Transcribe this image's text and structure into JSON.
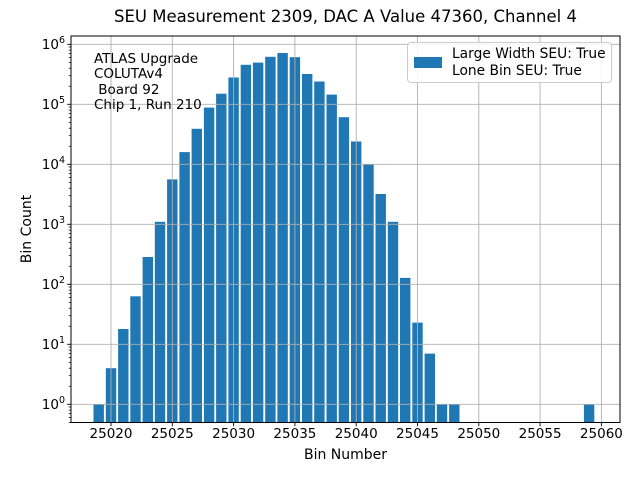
{
  "chart_data": {
    "type": "bar",
    "title": "SEU Measurement 2309, DAC A Value 47360, Channel 4",
    "xlabel": "Bin Number",
    "ylabel": "Bin Count",
    "yscale": "log",
    "grid": true,
    "ylim": [
      0.51,
      1320000
    ],
    "xlim": [
      25017.5,
      25061.5
    ],
    "x_ticks": [
      25020,
      25025,
      25030,
      25035,
      25040,
      25045,
      25050,
      25055,
      25060
    ],
    "y_tick_exponents": [
      0,
      1,
      2,
      3,
      4,
      5,
      6
    ],
    "bar_color": "#1f77b4",
    "grid_color": "#b0b0b0",
    "annotation_lines": [
      "ATLAS Upgrade",
      "COLUTAv4",
      " Board 92",
      "Chip 1, Run 210"
    ],
    "legend": {
      "position": "upper right",
      "labels": [
        "Large Width SEU: True",
        "Lone Bin SEU: True"
      ]
    },
    "bins": [
      25019,
      25020,
      25021,
      25022,
      25023,
      25024,
      25025,
      25026,
      25027,
      25028,
      25029,
      25030,
      25031,
      25032,
      25033,
      25034,
      25035,
      25036,
      25037,
      25038,
      25039,
      25040,
      25041,
      25042,
      25043,
      25044,
      25045,
      25046,
      25047,
      25048,
      25059
    ],
    "counts": [
      1,
      4,
      18,
      63,
      285,
      1100,
      5600,
      16000,
      39000,
      88000,
      150000,
      280000,
      455000,
      495000,
      620000,
      715000,
      610000,
      320000,
      240000,
      145000,
      61000,
      24000,
      10000,
      3200,
      1100,
      128,
      23,
      7,
      1,
      1,
      1
    ]
  }
}
